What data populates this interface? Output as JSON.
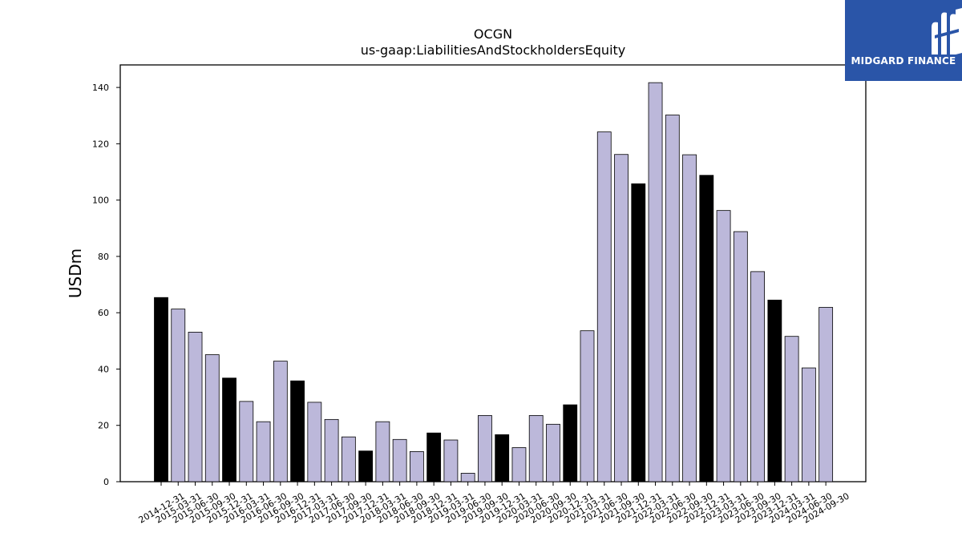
{
  "brand": {
    "name": "MIDGARD FINANCE",
    "background": "#2a55a8"
  },
  "chart_data": {
    "type": "bar",
    "title": "OCGN",
    "subtitle": "us-gaap:LiabilitiesAndStockholdersEquity",
    "xlabel": "",
    "ylabel": "USDm",
    "ylim": [
      0,
      148
    ],
    "yticks": [
      0,
      20,
      40,
      60,
      80,
      100,
      120,
      140
    ],
    "grid": false,
    "colors": {
      "quarter": "#bcb8da",
      "year_end": "#000000",
      "edge": "#000000"
    },
    "categories": [
      "2014-12-31",
      "2015-03-31",
      "2015-06-30",
      "2015-09-30",
      "2015-12-31",
      "2016-03-31",
      "2016-06-30",
      "2016-09-30",
      "2016-12-31",
      "2017-03-31",
      "2017-06-30",
      "2017-09-30",
      "2017-12-31",
      "2018-03-31",
      "2018-06-30",
      "2018-09-30",
      "2018-12-31",
      "2019-03-31",
      "2019-06-30",
      "2019-09-30",
      "2019-12-31",
      "2020-03-31",
      "2020-06-30",
      "2020-09-30",
      "2020-12-31",
      "2021-03-31",
      "2021-06-30",
      "2021-09-30",
      "2021-12-31",
      "2022-03-31",
      "2022-06-30",
      "2022-09-30",
      "2022-12-31",
      "2023-03-31",
      "2023-06-30",
      "2023-09-30",
      "2023-12-31",
      "2024-03-31",
      "2024-06-30",
      "2024-09-30"
    ],
    "values": [
      65.4,
      61.3,
      53.1,
      45.1,
      36.8,
      28.5,
      21.3,
      42.8,
      35.8,
      28.2,
      22.1,
      15.9,
      10.9,
      21.3,
      15.0,
      10.7,
      17.3,
      14.8,
      3.0,
      23.5,
      16.7,
      12.1,
      23.5,
      20.4,
      27.3,
      53.6,
      124.2,
      116.2,
      105.8,
      141.7,
      130.2,
      116.1,
      108.8,
      96.3,
      88.8,
      74.6,
      64.5,
      51.6,
      40.4,
      61.9
    ]
  }
}
